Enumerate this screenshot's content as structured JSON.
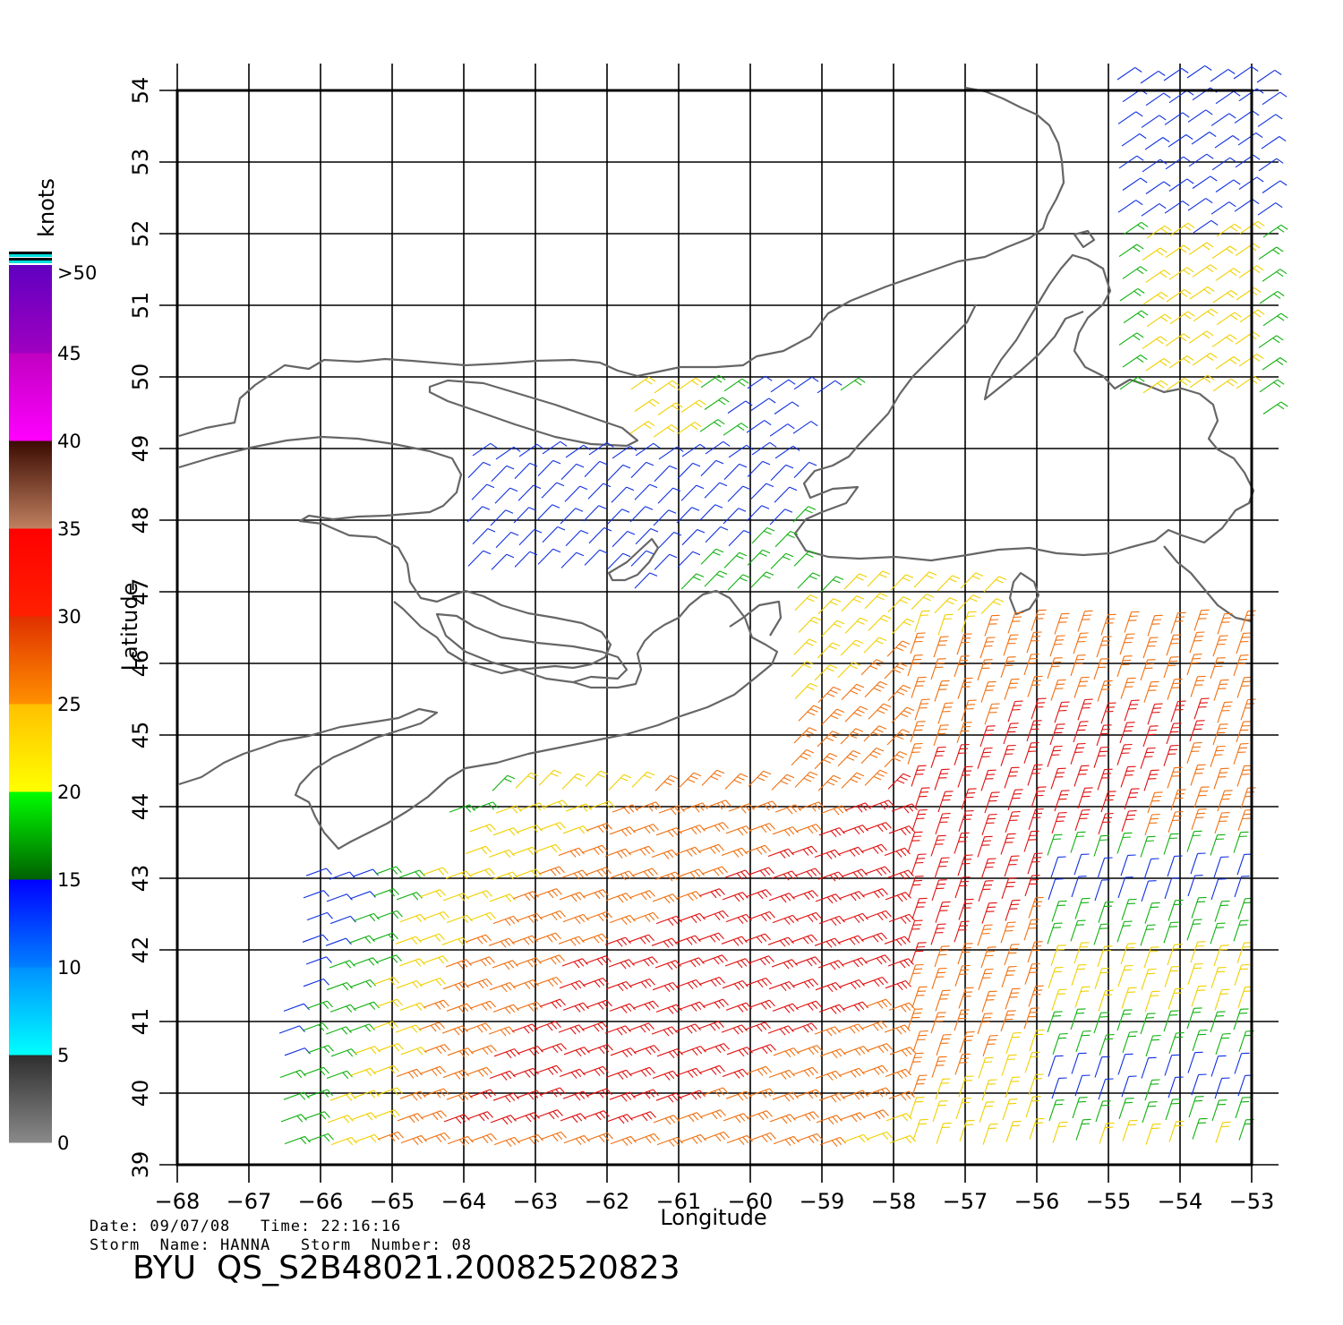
{
  "map": {
    "x_axis": {
      "title": "Longitude",
      "range": [
        -68,
        -53
      ],
      "ticks": [
        -68,
        -67,
        -66,
        -65,
        -64,
        -63,
        -62,
        -61,
        -60,
        -59,
        -58,
        -57,
        -56,
        -55,
        -54,
        -53
      ]
    },
    "y_axis": {
      "title": "Latitude",
      "range": [
        39,
        54
      ],
      "ticks": [
        39,
        40,
        41,
        42,
        43,
        44,
        45,
        46,
        47,
        48,
        49,
        50,
        51,
        52,
        53,
        54
      ]
    },
    "grid": true,
    "coastline_color": "#666666",
    "wind_barb_field": "wind barbs colored by speed",
    "land_features": [
      "Gulf of St. Lawrence",
      "Anticosti Island",
      "Gaspe Peninsula",
      "Prince Edward Island",
      "Nova Scotia",
      "Cape Breton Island",
      "Newfoundland"
    ]
  },
  "legend": {
    "title": "knots",
    "over_label": ">50",
    "labels": [
      "0",
      "5",
      "10",
      "15",
      "20",
      "25",
      "30",
      "35",
      "40",
      "45"
    ],
    "bands": [
      {
        "from": 0,
        "to": 5,
        "colors": [
          "#8a8a8a",
          "#2e2e2e"
        ]
      },
      {
        "from": 5,
        "to": 10,
        "colors": [
          "#00ffff",
          "#0090ff"
        ]
      },
      {
        "from": 10,
        "to": 15,
        "colors": [
          "#0080ff",
          "#0000ff"
        ]
      },
      {
        "from": 15,
        "to": 20,
        "colors": [
          "#006000",
          "#00ff00"
        ]
      },
      {
        "from": 20,
        "to": 25,
        "colors": [
          "#ffff00",
          "#ffc000"
        ]
      },
      {
        "from": 25,
        "to": 30,
        "colors": [
          "#ff9000",
          "#e03000"
        ]
      },
      {
        "from": 30,
        "to": 35,
        "colors": [
          "#ff2000",
          "#ff0000"
        ]
      },
      {
        "from": 35,
        "to": 40,
        "colors": [
          "#c08060",
          "#3a0a00"
        ]
      },
      {
        "from": 40,
        "to": 45,
        "colors": [
          "#ff00ff",
          "#c000c0"
        ]
      },
      {
        "from": 45,
        "to": 50,
        "colors": [
          "#a000c0",
          "#6000c0"
        ]
      }
    ]
  },
  "meta": {
    "line1": "Date: 09/07/08   Time: 22:16:16",
    "line2": "Storm  Name: HANNA   Storm  Number: 08",
    "product": "BYU  QS_S2B48021.20082520823"
  }
}
